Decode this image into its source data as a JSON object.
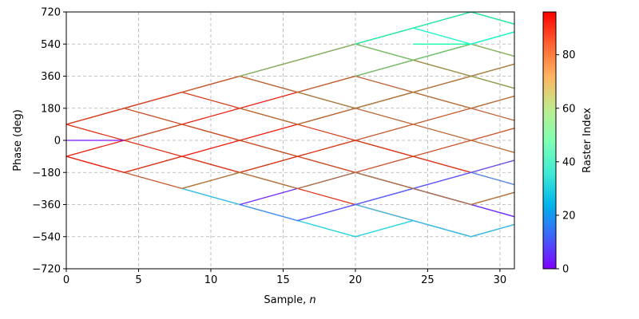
{
  "chart_data": {
    "type": "line",
    "xlabel_text": "Sample, ",
    "xlabel_var": "n",
    "ylabel": "Phase (deg)",
    "xlim": [
      0,
      31
    ],
    "ylim": [
      -720,
      720
    ],
    "xticks": [
      0,
      5,
      10,
      15,
      20,
      25,
      30
    ],
    "yticks": [
      -720,
      -540,
      -360,
      -180,
      0,
      180,
      360,
      540,
      720
    ],
    "grid": true,
    "colorbar": {
      "label": "Raster Index",
      "colormap": "rainbow",
      "range": [
        0,
        96
      ],
      "ticks": [
        0,
        20,
        40,
        60,
        80
      ]
    },
    "segments": [
      {
        "c": 95,
        "pts": [
          [
            0,
            90
          ],
          [
            4,
            180
          ],
          [
            8,
            270
          ],
          [
            12,
            360
          ],
          [
            20,
            540
          ],
          [
            28,
            720
          ],
          [
            31,
            652
          ]
        ]
      },
      {
        "c": 88,
        "pts": [
          [
            0,
            90
          ],
          [
            4,
            180
          ],
          [
            8,
            270
          ],
          [
            12,
            180
          ],
          [
            16,
            90
          ],
          [
            20,
            0
          ],
          [
            24,
            -90
          ],
          [
            28,
            -180
          ],
          [
            31,
            -248
          ]
        ]
      },
      {
        "c": 90,
        "pts": [
          [
            0,
            90
          ],
          [
            4,
            0
          ],
          [
            8,
            -90
          ],
          [
            12,
            -180
          ],
          [
            16,
            -270
          ],
          [
            20,
            -360
          ],
          [
            24,
            -450
          ],
          [
            28,
            -540
          ],
          [
            31,
            -472
          ]
        ]
      },
      {
        "c": 92,
        "pts": [
          [
            0,
            -90
          ],
          [
            4,
            0
          ],
          [
            8,
            90
          ],
          [
            12,
            180
          ],
          [
            16,
            270
          ],
          [
            20,
            360
          ],
          [
            24,
            450
          ],
          [
            28,
            540
          ],
          [
            31,
            472
          ]
        ]
      },
      {
        "c": 85,
        "pts": [
          [
            0,
            -90
          ],
          [
            4,
            -180
          ],
          [
            8,
            -270
          ],
          [
            12,
            -180
          ],
          [
            16,
            -90
          ],
          [
            20,
            0
          ],
          [
            24,
            90
          ],
          [
            28,
            180
          ],
          [
            31,
            248
          ]
        ]
      },
      {
        "c": 93,
        "pts": [
          [
            0,
            -90
          ],
          [
            4,
            -180
          ],
          [
            8,
            -90
          ],
          [
            12,
            0
          ],
          [
            16,
            90
          ],
          [
            20,
            180
          ],
          [
            24,
            270
          ],
          [
            28,
            360
          ],
          [
            31,
            428
          ]
        ]
      },
      {
        "c": 87,
        "pts": [
          [
            4,
            180
          ],
          [
            8,
            90
          ],
          [
            12,
            0
          ],
          [
            16,
            -90
          ],
          [
            20,
            -180
          ],
          [
            24,
            -270
          ],
          [
            28,
            -360
          ],
          [
            31,
            -292
          ]
        ]
      },
      {
        "c": 86,
        "pts": [
          [
            4,
            0
          ],
          [
            8,
            90
          ],
          [
            12,
            0
          ],
          [
            16,
            -90
          ],
          [
            20,
            -180
          ],
          [
            24,
            -90
          ],
          [
            28,
            0
          ],
          [
            31,
            68
          ]
        ]
      },
      {
        "c": 89,
        "pts": [
          [
            4,
            -180
          ],
          [
            8,
            -90
          ],
          [
            12,
            -180
          ],
          [
            16,
            -90
          ],
          [
            20,
            0
          ],
          [
            24,
            -90
          ],
          [
            28,
            -180
          ],
          [
            31,
            -112
          ]
        ]
      },
      {
        "c": 84,
        "pts": [
          [
            8,
            270
          ],
          [
            12,
            360
          ],
          [
            16,
            270
          ],
          [
            20,
            360
          ],
          [
            24,
            270
          ],
          [
            28,
            180
          ],
          [
            31,
            112
          ]
        ]
      },
      {
        "c": 83,
        "pts": [
          [
            12,
            360
          ],
          [
            16,
            270
          ],
          [
            20,
            180
          ],
          [
            24,
            90
          ],
          [
            28,
            0
          ],
          [
            31,
            -68
          ]
        ]
      },
      {
        "c": 82,
        "pts": [
          [
            12,
            180
          ],
          [
            16,
            90
          ],
          [
            20,
            180
          ],
          [
            24,
            270
          ],
          [
            28,
            180
          ],
          [
            31,
            248
          ]
        ]
      },
      {
        "c": 80,
        "pts": [
          [
            16,
            270
          ],
          [
            20,
            180
          ],
          [
            24,
            270
          ],
          [
            28,
            360
          ],
          [
            31,
            292
          ]
        ]
      },
      {
        "c": 75,
        "pts": [
          [
            20,
            540
          ],
          [
            24,
            450
          ],
          [
            28,
            360
          ],
          [
            31,
            292
          ]
        ]
      },
      {
        "c": 70,
        "pts": [
          [
            12,
            360
          ],
          [
            16,
            450
          ],
          [
            20,
            540
          ],
          [
            24,
            450
          ],
          [
            28,
            540
          ],
          [
            31,
            472
          ]
        ]
      },
      {
        "c": 68,
        "pts": [
          [
            20,
            360
          ],
          [
            24,
            450
          ],
          [
            28,
            540
          ],
          [
            31,
            608
          ]
        ]
      },
      {
        "c": 50,
        "pts": [
          [
            20,
            540
          ],
          [
            24,
            630
          ],
          [
            28,
            720
          ],
          [
            31,
            652
          ]
        ]
      },
      {
        "c": 52,
        "pts": [
          [
            24,
            540
          ],
          [
            28,
            540
          ],
          [
            31,
            608
          ]
        ]
      },
      {
        "c": 40,
        "pts": [
          [
            24,
            630
          ],
          [
            28,
            540
          ],
          [
            31,
            608
          ]
        ]
      },
      {
        "c": 35,
        "pts": [
          [
            8,
            -270
          ],
          [
            12,
            -360
          ],
          [
            16,
            -450
          ],
          [
            20,
            -540
          ],
          [
            24,
            -450
          ],
          [
            28,
            -540
          ],
          [
            31,
            -472
          ]
        ]
      },
      {
        "c": 30,
        "pts": [
          [
            16,
            -450
          ],
          [
            20,
            -540
          ],
          [
            24,
            -450
          ],
          [
            28,
            -540
          ],
          [
            31,
            -472
          ]
        ]
      },
      {
        "c": 25,
        "pts": [
          [
            8,
            -270
          ],
          [
            12,
            -360
          ],
          [
            16,
            -450
          ],
          [
            20,
            -360
          ],
          [
            24,
            -450
          ],
          [
            28,
            -540
          ],
          [
            31,
            -472
          ]
        ]
      },
      {
        "c": 18,
        "pts": [
          [
            12,
            -360
          ],
          [
            16,
            -450
          ],
          [
            20,
            -360
          ],
          [
            24,
            -270
          ],
          [
            28,
            -180
          ],
          [
            31,
            -248
          ]
        ]
      },
      {
        "c": 10,
        "pts": [
          [
            16,
            -450
          ],
          [
            20,
            -360
          ],
          [
            24,
            -270
          ],
          [
            28,
            -180
          ],
          [
            31,
            -112
          ]
        ]
      },
      {
        "c": 12,
        "pts": [
          [
            20,
            -360
          ],
          [
            24,
            -270
          ],
          [
            28,
            -360
          ],
          [
            31,
            -428
          ]
        ]
      },
      {
        "c": 5,
        "pts": [
          [
            12,
            -360
          ],
          [
            16,
            -270
          ],
          [
            20,
            -180
          ],
          [
            24,
            -270
          ],
          [
            28,
            -360
          ],
          [
            31,
            -428
          ]
        ]
      },
      {
        "c": 2,
        "pts": [
          [
            0,
            0
          ],
          [
            4,
            0
          ]
        ]
      },
      {
        "c": 78,
        "pts": [
          [
            24,
            450
          ],
          [
            28,
            360
          ],
          [
            31,
            428
          ]
        ]
      },
      {
        "c": 81,
        "pts": [
          [
            8,
            -270
          ],
          [
            12,
            -180
          ],
          [
            16,
            -270
          ],
          [
            20,
            -180
          ],
          [
            24,
            -270
          ],
          [
            28,
            -360
          ],
          [
            31,
            -292
          ]
        ]
      }
    ]
  }
}
